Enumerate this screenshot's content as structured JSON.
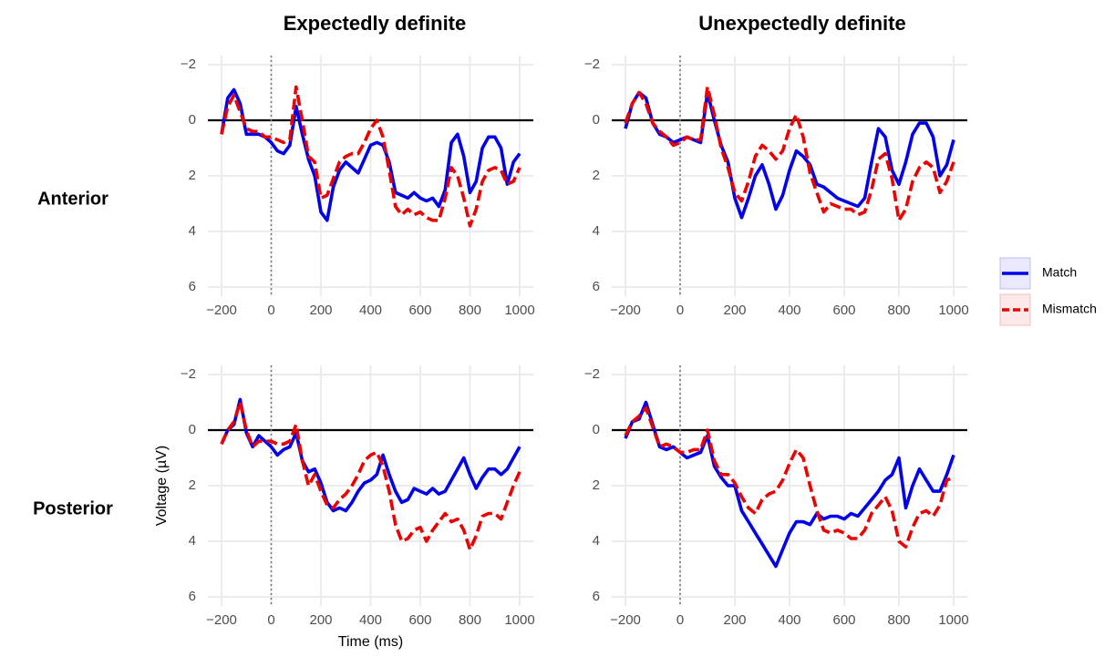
{
  "facets": {
    "columns": [
      "Expectedly definite",
      "Unexpectedly definite"
    ],
    "rows": [
      "Anterior",
      "Posterior"
    ]
  },
  "legend": {
    "position": "right",
    "items": [
      {
        "name": "Match",
        "color": "#0000ee",
        "dash": "solid"
      },
      {
        "name": "Mismatch",
        "color": "#ee0000",
        "dash": "dashed"
      }
    ]
  },
  "chart_data": [
    {
      "type": "line",
      "x": [
        -200,
        -175,
        -150,
        -125,
        -100,
        -75,
        -50,
        -25,
        0,
        25,
        50,
        75,
        100,
        125,
        150,
        175,
        200,
        225,
        250,
        275,
        300,
        325,
        350,
        375,
        400,
        425,
        450,
        475,
        500,
        525,
        550,
        575,
        600,
        625,
        650,
        675,
        700,
        725,
        750,
        775,
        800,
        825,
        850,
        875,
        900,
        925,
        950,
        975,
        1000
      ],
      "series": [
        {
          "values": [
            0.5,
            -0.8,
            -1.1,
            -0.6,
            0.5,
            0.5,
            0.5,
            0.6,
            0.8,
            1.1,
            1.2,
            0.9,
            -0.5,
            0.5,
            1.4,
            2.0,
            3.3,
            3.6,
            2.4,
            1.8,
            1.5,
            1.7,
            1.9,
            1.4,
            0.9,
            0.8,
            0.9,
            1.5,
            2.6,
            2.7,
            2.8,
            2.6,
            2.8,
            2.9,
            2.8,
            3.1,
            2.5,
            0.8,
            0.5,
            1.3,
            2.6,
            2.2,
            1.0,
            0.6,
            0.6,
            1.0,
            2.3,
            1.5,
            1.2
          ]
        },
        {
          "values": [
            0.5,
            -0.5,
            -0.9,
            -0.3,
            0.3,
            0.4,
            0.4,
            0.6,
            0.6,
            0.7,
            0.8,
            0.7,
            -1.2,
            0.0,
            1.3,
            1.5,
            2.8,
            2.7,
            2.1,
            1.5,
            1.3,
            1.2,
            1.2,
            0.8,
            0.3,
            0.0,
            0.6,
            1.8,
            3.1,
            3.4,
            3.2,
            3.4,
            3.3,
            3.5,
            3.6,
            3.6,
            2.8,
            1.7,
            2.0,
            2.8,
            3.8,
            3.2,
            2.2,
            1.8,
            1.7,
            1.8,
            2.3,
            2.2,
            1.7
          ]
        }
      ],
      "xlim": [
        -200,
        1000
      ],
      "xticks": [
        {
          "value": -200,
          "label": "−200"
        },
        0,
        200,
        400,
        600,
        800,
        1000
      ],
      "ylim": [
        -2,
        6
      ],
      "y_reversed": true,
      "yticks": [
        {
          "value": -2,
          "label": "−2"
        },
        0,
        2,
        4,
        6
      ],
      "grid": true,
      "hline": 0,
      "vline": 0
    },
    {
      "type": "line",
      "x": [
        -200,
        -175,
        -150,
        -125,
        -100,
        -75,
        -50,
        -25,
        0,
        25,
        50,
        75,
        100,
        125,
        150,
        175,
        200,
        225,
        250,
        275,
        300,
        325,
        350,
        375,
        400,
        425,
        450,
        475,
        500,
        525,
        550,
        575,
        600,
        625,
        650,
        675,
        700,
        725,
        750,
        775,
        800,
        825,
        850,
        875,
        900,
        925,
        950,
        975,
        1000
      ],
      "series": [
        {
          "values": [
            0.3,
            -0.6,
            -1.0,
            -0.8,
            0.1,
            0.5,
            0.6,
            0.8,
            0.7,
            0.6,
            0.7,
            0.8,
            -1.0,
            0.0,
            0.9,
            1.5,
            2.8,
            3.5,
            2.8,
            2.0,
            1.6,
            2.3,
            3.2,
            2.7,
            1.8,
            1.1,
            1.3,
            1.6,
            2.3,
            2.4,
            2.6,
            2.8,
            2.9,
            3.0,
            3.1,
            2.8,
            1.5,
            0.3,
            0.6,
            1.8,
            2.3,
            1.5,
            0.5,
            0.1,
            0.1,
            0.6,
            2.0,
            1.6,
            0.7
          ]
        },
        {
          "values": [
            0.1,
            -0.6,
            -1.0,
            -0.6,
            0.1,
            0.4,
            0.6,
            0.9,
            0.8,
            0.6,
            0.7,
            0.7,
            -1.2,
            -0.2,
            1.0,
            1.7,
            2.6,
            2.9,
            2.2,
            1.3,
            0.9,
            1.1,
            1.4,
            1.1,
            0.3,
            -0.2,
            0.6,
            1.9,
            2.6,
            3.3,
            3.0,
            3.1,
            3.2,
            3.2,
            3.4,
            3.3,
            2.5,
            1.4,
            1.2,
            2.1,
            3.6,
            3.2,
            2.2,
            1.7,
            1.5,
            1.7,
            2.6,
            2.2,
            1.5
          ]
        }
      ],
      "xlim": [
        -200,
        1000
      ],
      "xticks": [
        {
          "value": -200,
          "label": "−200"
        },
        0,
        200,
        400,
        600,
        800,
        1000
      ],
      "ylim": [
        -2,
        6
      ],
      "y_reversed": true,
      "yticks": [
        {
          "value": -2,
          "label": "−2"
        },
        0,
        2,
        4,
        6
      ],
      "grid": true,
      "hline": 0,
      "vline": 0
    },
    {
      "type": "line",
      "xlabel": "Time (ms)",
      "ylabel": "Voltage (µV)",
      "x": [
        -200,
        -175,
        -150,
        -125,
        -100,
        -75,
        -50,
        -25,
        0,
        25,
        50,
        75,
        100,
        125,
        150,
        175,
        200,
        225,
        250,
        275,
        300,
        325,
        350,
        375,
        400,
        425,
        450,
        475,
        500,
        525,
        550,
        575,
        600,
        625,
        650,
        675,
        700,
        725,
        750,
        775,
        800,
        825,
        850,
        875,
        900,
        925,
        950,
        975,
        1000
      ],
      "series": [
        {
          "values": [
            0.5,
            0.0,
            -0.2,
            -1.1,
            0.1,
            0.6,
            0.2,
            0.4,
            0.6,
            0.9,
            0.7,
            0.6,
            0.1,
            1.1,
            1.5,
            1.4,
            1.9,
            2.6,
            2.9,
            2.8,
            2.9,
            2.6,
            2.2,
            1.9,
            1.8,
            1.6,
            0.9,
            1.6,
            2.2,
            2.6,
            2.5,
            2.1,
            2.2,
            2.3,
            2.1,
            2.3,
            2.2,
            1.8,
            1.4,
            1.0,
            1.6,
            2.1,
            1.7,
            1.4,
            1.4,
            1.6,
            1.4,
            1.0,
            0.6
          ]
        },
        {
          "values": [
            0.5,
            0.0,
            -0.3,
            -1.0,
            0.0,
            0.6,
            0.4,
            0.4,
            0.4,
            0.5,
            0.5,
            0.4,
            -0.2,
            1.1,
            2.0,
            1.6,
            2.2,
            2.7,
            2.8,
            2.5,
            2.3,
            2.0,
            1.6,
            1.1,
            0.9,
            0.8,
            1.3,
            2.2,
            3.4,
            4.0,
            3.9,
            3.6,
            3.5,
            4.0,
            3.6,
            3.3,
            3.0,
            3.3,
            3.2,
            3.6,
            4.3,
            3.8,
            3.1,
            3.0,
            3.0,
            3.2,
            2.6,
            2.0,
            1.5
          ]
        }
      ],
      "xlim": [
        -200,
        1000
      ],
      "xticks": [
        {
          "value": -200,
          "label": "−200"
        },
        0,
        200,
        400,
        600,
        800,
        1000
      ],
      "ylim": [
        -2,
        6
      ],
      "y_reversed": true,
      "yticks": [
        {
          "value": -2,
          "label": "−2"
        },
        0,
        2,
        4,
        6
      ],
      "grid": true,
      "hline": 0,
      "vline": 0
    },
    {
      "type": "line",
      "x": [
        -200,
        -175,
        -150,
        -125,
        -100,
        -75,
        -50,
        -25,
        0,
        25,
        50,
        75,
        100,
        125,
        150,
        175,
        200,
        225,
        250,
        275,
        300,
        325,
        350,
        375,
        400,
        425,
        450,
        475,
        500,
        525,
        550,
        575,
        600,
        625,
        650,
        675,
        700,
        725,
        750,
        775,
        800,
        825,
        850,
        875,
        900,
        925,
        950,
        975,
        1000
      ],
      "series": [
        {
          "values": [
            0.3,
            -0.3,
            -0.4,
            -1.0,
            -0.2,
            0.6,
            0.7,
            0.6,
            0.8,
            1.0,
            0.9,
            0.8,
            0.2,
            1.3,
            1.7,
            2.0,
            2.0,
            2.9,
            3.3,
            3.7,
            4.1,
            4.5,
            4.9,
            4.3,
            3.7,
            3.3,
            3.3,
            3.4,
            3.0,
            3.2,
            3.1,
            3.1,
            3.2,
            3.0,
            3.1,
            2.8,
            2.5,
            2.2,
            1.8,
            1.6,
            1.0,
            2.8,
            2.0,
            1.4,
            1.8,
            2.2,
            2.2,
            1.6,
            0.9
          ]
        },
        {
          "values": [
            0.2,
            -0.3,
            -0.5,
            -0.8,
            -0.1,
            0.6,
            0.5,
            0.6,
            0.8,
            0.8,
            0.7,
            0.7,
            0.0,
            1.1,
            1.6,
            1.6,
            1.9,
            2.4,
            2.8,
            3.0,
            2.5,
            2.3,
            2.2,
            1.8,
            1.2,
            0.7,
            1.0,
            2.0,
            2.9,
            3.6,
            3.7,
            3.6,
            3.7,
            3.9,
            3.9,
            3.6,
            3.0,
            2.7,
            2.4,
            2.9,
            4.0,
            4.2,
            3.5,
            3.0,
            2.9,
            3.1,
            2.7,
            1.8,
            1.7
          ]
        }
      ],
      "xlim": [
        -200,
        1000
      ],
      "xticks": [
        {
          "value": -200,
          "label": "−200"
        },
        0,
        200,
        400,
        600,
        800,
        1000
      ],
      "ylim": [
        -2,
        6
      ],
      "y_reversed": true,
      "yticks": [
        {
          "value": -2,
          "label": "−2"
        },
        0,
        2,
        4,
        6
      ],
      "grid": true,
      "hline": 0,
      "vline": 0
    }
  ]
}
